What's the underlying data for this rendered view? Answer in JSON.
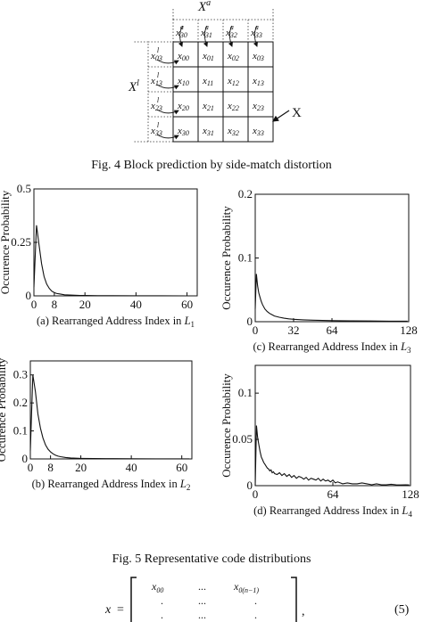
{
  "fig4": {
    "top_label": "X",
    "top_label_sup": "a",
    "left_label": "X",
    "left_label_sup": "l",
    "right_label": "X",
    "top_row": [
      "x",
      "x",
      "x",
      "x"
    ],
    "top_row_sub": [
      "30",
      "31",
      "32",
      "33"
    ],
    "top_row_sup": [
      "a",
      "a",
      "a",
      "a"
    ],
    "left_col": [
      "x",
      "x",
      "x",
      "x"
    ],
    "left_col_sub": [
      "03",
      "13",
      "23",
      "33"
    ],
    "left_col_sup": [
      "l",
      "l",
      "l",
      "l"
    ],
    "grid": [
      [
        {
          "b": "x",
          "s": "00"
        },
        {
          "b": "x",
          "s": "01"
        },
        {
          "b": "x",
          "s": "02"
        },
        {
          "b": "x",
          "s": "03"
        }
      ],
      [
        {
          "b": "x",
          "s": "10"
        },
        {
          "b": "x",
          "s": "11"
        },
        {
          "b": "x",
          "s": "12"
        },
        {
          "b": "x",
          "s": "13"
        }
      ],
      [
        {
          "b": "x",
          "s": "20"
        },
        {
          "b": "x",
          "s": "21"
        },
        {
          "b": "x",
          "s": "22"
        },
        {
          "b": "x",
          "s": "23"
        }
      ],
      [
        {
          "b": "x",
          "s": "30"
        },
        {
          "b": "x",
          "s": "31"
        },
        {
          "b": "x",
          "s": "32"
        },
        {
          "b": "x",
          "s": "33"
        }
      ]
    ],
    "caption": "Fig. 4  Block prediction by side-match distortion"
  },
  "fig5": {
    "caption": "Fig. 5  Representative code distributions"
  },
  "chart_data": [
    {
      "type": "line",
      "id": "a",
      "ylabel": "Occurence Probability",
      "xlabel": "(a) Rearranged Address Index in ",
      "xlabel_sym": "L",
      "xlabel_sub": "1",
      "xlim": [
        0,
        64
      ],
      "ylim": [
        0,
        0.5
      ],
      "xticks": [
        0,
        8,
        20,
        40,
        60
      ],
      "yticks": [
        0,
        0.25,
        0.5
      ],
      "yticklabels": [
        "0",
        "0.25",
        "0.5"
      ],
      "x": [
        0,
        1,
        2,
        3,
        4,
        5,
        6,
        7,
        8,
        9,
        10,
        11,
        12,
        14,
        16,
        18,
        20,
        25,
        30,
        40,
        50,
        60,
        63
      ],
      "y": [
        0.04,
        0.33,
        0.24,
        0.15,
        0.09,
        0.055,
        0.035,
        0.022,
        0.015,
        0.011,
        0.009,
        0.007,
        0.005,
        0.004,
        0.003,
        0.002,
        0.0015,
        0.001,
        0.0008,
        0.0005,
        0.0003,
        0.0002,
        0.0002
      ]
    },
    {
      "type": "line",
      "id": "c",
      "ylabel": "Occurence Probability",
      "xlabel": "(c) Rearranged Address Index in ",
      "xlabel_sym": "L",
      "xlabel_sub": "3",
      "xlim": [
        0,
        128
      ],
      "ylim": [
        0,
        0.2
      ],
      "xticks": [
        0,
        32,
        64,
        128
      ],
      "yticks": [
        0,
        0.1,
        0.2
      ],
      "yticklabels": [
        "0",
        "0.1",
        "0.2"
      ],
      "x": [
        0,
        1,
        2,
        3,
        4,
        5,
        6,
        8,
        10,
        12,
        14,
        16,
        20,
        24,
        28,
        32,
        40,
        48,
        56,
        64,
        80,
        96,
        112,
        127
      ],
      "y": [
        0.02,
        0.075,
        0.056,
        0.045,
        0.038,
        0.032,
        0.027,
        0.02,
        0.016,
        0.013,
        0.011,
        0.009,
        0.007,
        0.0055,
        0.0045,
        0.0038,
        0.003,
        0.0024,
        0.002,
        0.0017,
        0.0013,
        0.0011,
        0.0009,
        0.0008
      ]
    },
    {
      "type": "line",
      "id": "b",
      "ylabel": "Occurence Probability",
      "xlabel": "(b) Rearranged Address Index in ",
      "xlabel_sym": "L",
      "xlabel_sub": "2",
      "xlim": [
        0,
        64
      ],
      "ylim": [
        0,
        0.35
      ],
      "xticks": [
        0,
        8,
        20,
        40,
        60
      ],
      "yticks": [
        0,
        0.1,
        0.2,
        0.3
      ],
      "yticklabels": [
        "0",
        "0.1",
        "0.2",
        "0.3"
      ],
      "x": [
        0,
        1,
        2,
        3,
        4,
        5,
        6,
        7,
        8,
        9,
        10,
        11,
        12,
        14,
        16,
        18,
        20,
        25,
        30,
        40,
        50,
        60,
        63
      ],
      "y": [
        0.03,
        0.3,
        0.24,
        0.16,
        0.11,
        0.075,
        0.05,
        0.035,
        0.025,
        0.018,
        0.013,
        0.01,
        0.008,
        0.005,
        0.0035,
        0.0025,
        0.002,
        0.0012,
        0.0008,
        0.0005,
        0.0003,
        0.0002,
        0.0002
      ]
    },
    {
      "type": "line",
      "id": "d",
      "ylabel": "Occurence Probability",
      "xlabel": "(d) Rearranged Address Index in ",
      "xlabel_sym": "L",
      "xlabel_sub": "4",
      "xlim": [
        0,
        128
      ],
      "ylim": [
        0,
        0.13
      ],
      "xticks": [
        0,
        64,
        128
      ],
      "yticks": [
        0,
        0.05,
        0.1
      ],
      "yticklabels": [
        "0",
        "0.05",
        "0.1"
      ],
      "x": [
        0,
        1,
        2,
        3,
        4,
        5,
        6,
        7,
        8,
        9,
        10,
        11,
        12,
        13,
        14,
        15,
        16,
        18,
        20,
        22,
        24,
        26,
        28,
        30,
        32,
        34,
        36,
        38,
        40,
        42,
        44,
        46,
        48,
        50,
        52,
        54,
        56,
        58,
        60,
        62,
        64,
        66,
        68,
        70,
        72,
        76,
        80,
        84,
        88,
        92,
        96,
        100,
        104,
        108,
        112,
        116,
        120,
        124,
        127
      ],
      "y": [
        0.0,
        0.065,
        0.052,
        0.044,
        0.037,
        0.031,
        0.028,
        0.025,
        0.023,
        0.021,
        0.019,
        0.018,
        0.016,
        0.017,
        0.014,
        0.015,
        0.013,
        0.012,
        0.014,
        0.011,
        0.013,
        0.01,
        0.012,
        0.009,
        0.011,
        0.008,
        0.01,
        0.009,
        0.007,
        0.009,
        0.006,
        0.008,
        0.007,
        0.006,
        0.008,
        0.005,
        0.007,
        0.005,
        0.006,
        0.004,
        0.006,
        0.003,
        0.004,
        0.003,
        0.002,
        0.003,
        0.002,
        0.002,
        0.003,
        0.002,
        0.001,
        0.002,
        0.001,
        0.001,
        0.0015,
        0.001,
        0.0008,
        0.001,
        0.0008
      ]
    }
  ],
  "equation": {
    "lhs": "x",
    "eq": "=",
    "row1": [
      "x",
      "...",
      "x"
    ],
    "row1_sub": [
      "00",
      "",
      "0(n−1)"
    ],
    "row2": [
      ".",
      "...",
      "."
    ],
    "row3": [
      ".",
      "...",
      "."
    ],
    "comma": ",",
    "number": "(5)"
  }
}
